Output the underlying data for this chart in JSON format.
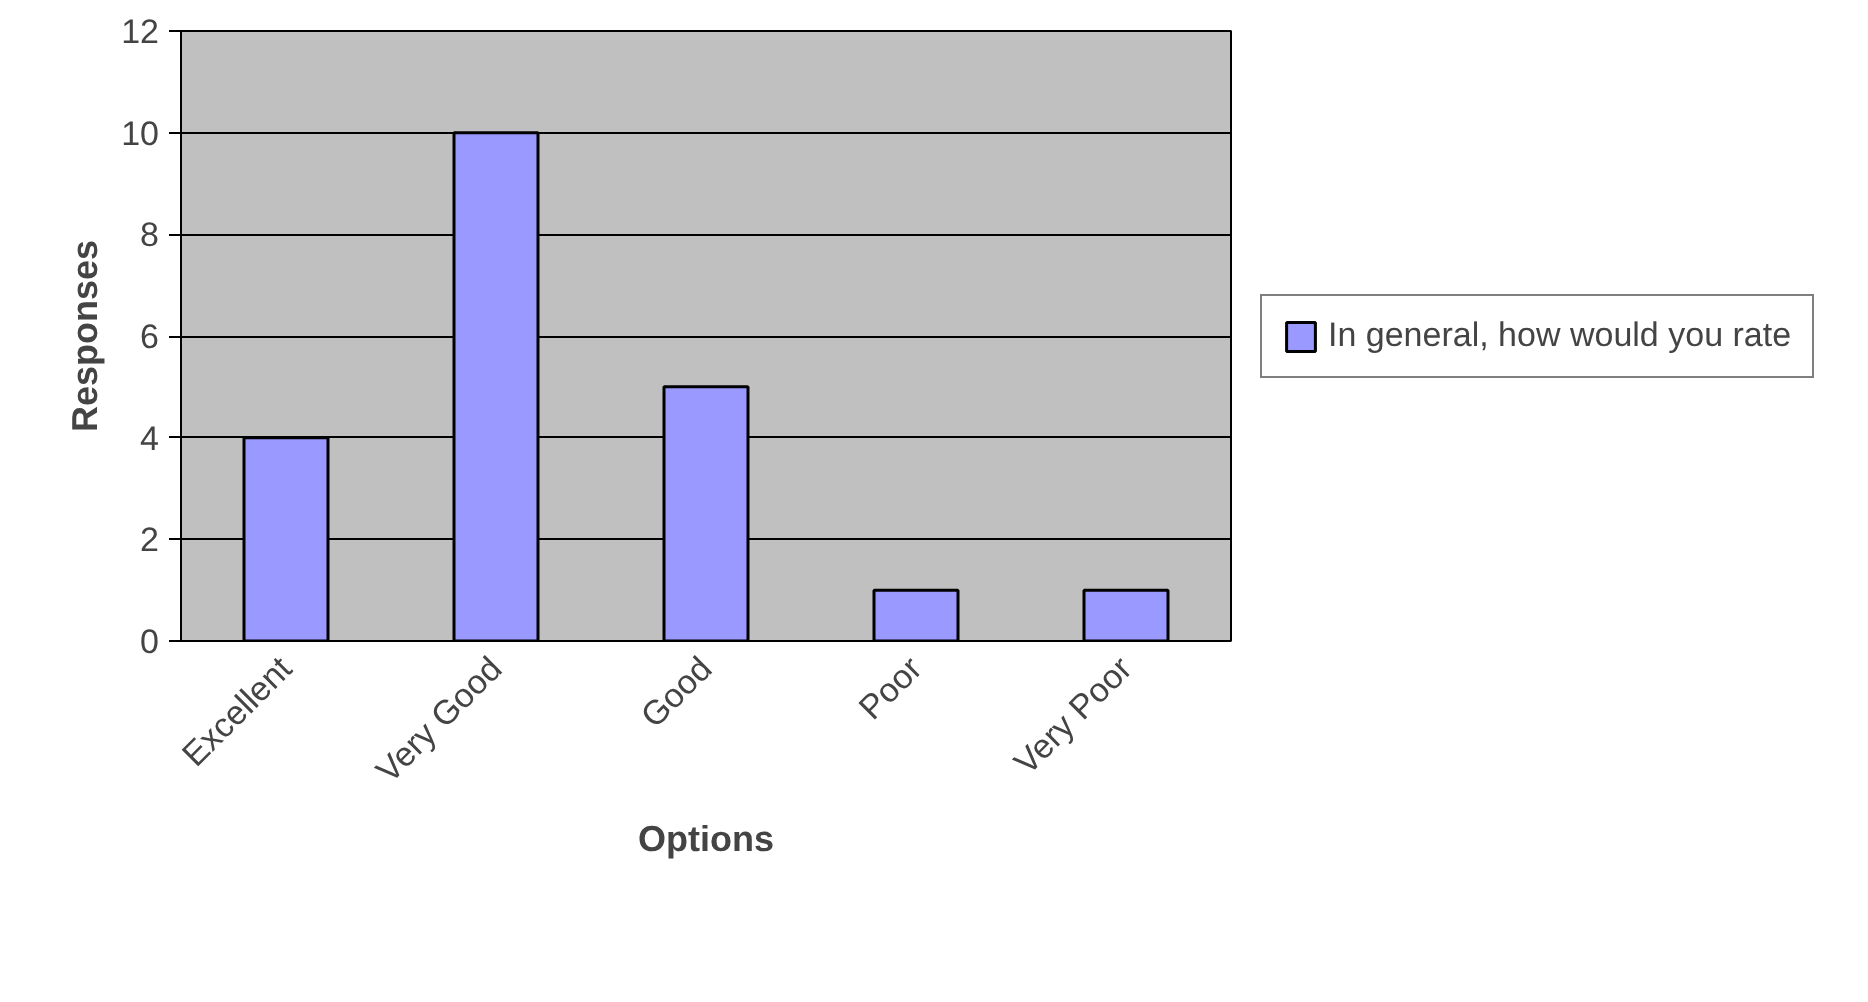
{
  "chart_data": {
    "type": "bar",
    "xlabel": "Options",
    "ylabel": "Responses",
    "categories": [
      "Excellent",
      "Very Good",
      "Good",
      "Poor",
      "Very Poor"
    ],
    "series": [
      {
        "name": "In general, how would you rate",
        "color": "#9999ff",
        "values": [
          4,
          10,
          5,
          1,
          1
        ]
      }
    ],
    "ylim": [
      0,
      12
    ],
    "yticks": [
      0,
      2,
      4,
      6,
      8,
      10,
      12
    ],
    "grid": "y",
    "legend": "right"
  }
}
